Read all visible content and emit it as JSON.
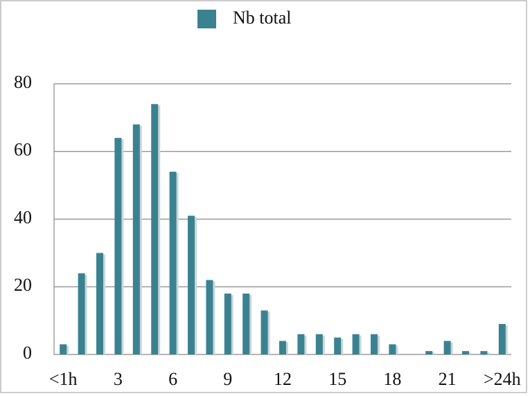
{
  "chart_data": {
    "type": "bar",
    "categories": [
      "<1h",
      null,
      null,
      "3",
      null,
      null,
      "6",
      null,
      null,
      "9",
      null,
      null,
      "12",
      null,
      null,
      "15",
      null,
      null,
      "18",
      null,
      null,
      "21",
      null,
      null,
      ">24h"
    ],
    "series": [
      {
        "name": "Nb total",
        "color": "#3b8291",
        "values": [
          3,
          24,
          30,
          64,
          68,
          74,
          54,
          41,
          22,
          18,
          18,
          13,
          4,
          6,
          6,
          5,
          6,
          6,
          3,
          0,
          1,
          4,
          1,
          1,
          9
        ]
      }
    ],
    "ylim": [
      0,
      80
    ],
    "yticks": [
      0,
      20,
      40,
      60,
      80
    ],
    "grid": true,
    "legend": "top"
  }
}
